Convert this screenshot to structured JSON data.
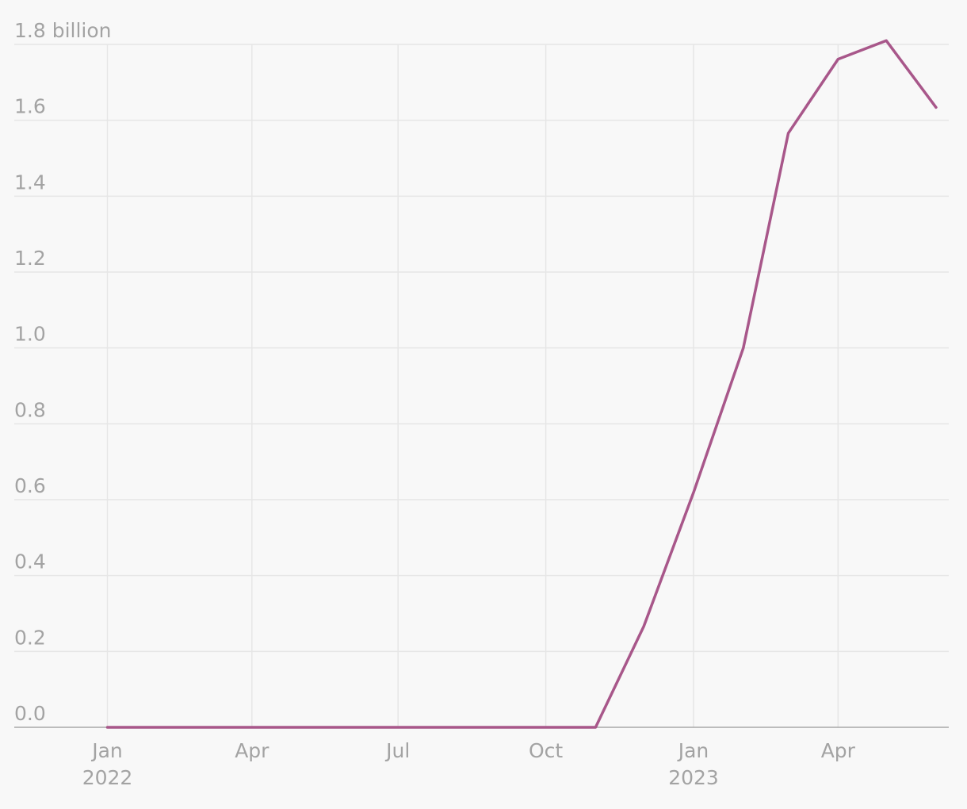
{
  "chart_data": {
    "type": "line",
    "title": "",
    "xlabel": "",
    "ylabel": "",
    "y_unit_label": "billion",
    "grid": true,
    "ylim": [
      0,
      1.8
    ],
    "y_ticks": [
      {
        "value": 0.0,
        "label": "0.0"
      },
      {
        "value": 0.2,
        "label": "0.2"
      },
      {
        "value": 0.4,
        "label": "0.4"
      },
      {
        "value": 0.6,
        "label": "0.6"
      },
      {
        "value": 0.8,
        "label": "0.8"
      },
      {
        "value": 1.0,
        "label": "1.0"
      },
      {
        "value": 1.2,
        "label": "1.2"
      },
      {
        "value": 1.4,
        "label": "1.4"
      },
      {
        "value": 1.6,
        "label": "1.6"
      },
      {
        "value": 1.8,
        "label": "1.8 billion"
      }
    ],
    "x_ticks": [
      {
        "date": "2022-01-01",
        "label": "Jan",
        "sublabel": "2022"
      },
      {
        "date": "2022-04-01",
        "label": "Apr",
        "sublabel": ""
      },
      {
        "date": "2022-07-01",
        "label": "Jul",
        "sublabel": ""
      },
      {
        "date": "2022-10-01",
        "label": "Oct",
        "sublabel": ""
      },
      {
        "date": "2023-01-01",
        "label": "Jan",
        "sublabel": "2023"
      },
      {
        "date": "2023-04-01",
        "label": "Apr",
        "sublabel": ""
      }
    ],
    "xlim": [
      "2022-01-01",
      "2023-06-22"
    ],
    "series": [
      {
        "color": "#a8578a",
        "points": [
          {
            "x": "2022-01-01",
            "y": 0.0
          },
          {
            "x": "2022-02-01",
            "y": 0.0
          },
          {
            "x": "2022-03-01",
            "y": 0.0
          },
          {
            "x": "2022-04-01",
            "y": 0.0
          },
          {
            "x": "2022-05-01",
            "y": 0.0
          },
          {
            "x": "2022-06-01",
            "y": 0.0
          },
          {
            "x": "2022-07-01",
            "y": 0.0
          },
          {
            "x": "2022-08-01",
            "y": 0.0
          },
          {
            "x": "2022-09-01",
            "y": 0.0
          },
          {
            "x": "2022-10-01",
            "y": 0.0
          },
          {
            "x": "2022-11-01",
            "y": 0.0
          },
          {
            "x": "2022-12-01",
            "y": 0.266
          },
          {
            "x": "2023-01-01",
            "y": 0.619
          },
          {
            "x": "2023-02-01",
            "y": 1.0
          },
          {
            "x": "2023-03-01",
            "y": 1.566
          },
          {
            "x": "2023-04-01",
            "y": 1.761
          },
          {
            "x": "2023-05-01",
            "y": 1.81
          },
          {
            "x": "2023-06-01",
            "y": 1.634
          }
        ]
      }
    ]
  }
}
